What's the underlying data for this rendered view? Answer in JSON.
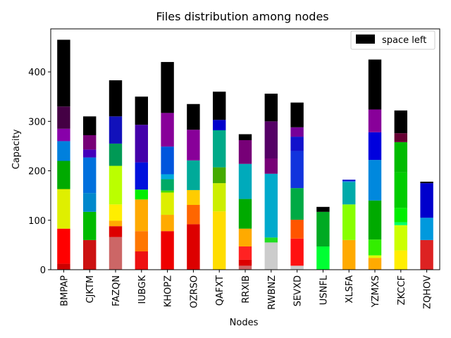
{
  "chart_data": {
    "type": "bar",
    "stacked": true,
    "title": "Files distribution among nodes",
    "xlabel": "Nodes",
    "ylabel": "Capacity",
    "ylim": [
      0,
      487
    ],
    "yticks": [
      0,
      100,
      200,
      300,
      400
    ],
    "grid": false,
    "legend": {
      "placement": "top-right",
      "entries": [
        {
          "label": "space left",
          "color": "#000000"
        }
      ]
    },
    "categories": [
      "BMPAP",
      "CJKTM",
      "FAZQN",
      "IUBGK",
      "KHOPZ",
      "OZRSO",
      "QAFXT",
      "RRXIB",
      "RWBNZ",
      "SEVXD",
      "USNFL",
      "XLSFA",
      "YZMXS",
      "ZKCCF",
      "ZQHOV"
    ],
    "bars": [
      {
        "segments": [
          {
            "value": 12,
            "color": "#cc0000"
          },
          {
            "value": 71,
            "color": "#ff0000"
          },
          {
            "value": 80,
            "color": "#dfef00"
          },
          {
            "value": 57,
            "color": "#00aa00"
          },
          {
            "value": 40,
            "color": "#0080dd"
          },
          {
            "value": 25,
            "color": "#8800aa"
          },
          {
            "value": 45,
            "color": "#440044"
          },
          {
            "value": 135,
            "color": "#000000"
          }
        ]
      },
      {
        "segments": [
          {
            "value": 60,
            "color": "#cc1111"
          },
          {
            "value": 57,
            "color": "#00bb00"
          },
          {
            "value": 38,
            "color": "#0088cc"
          },
          {
            "value": 72,
            "color": "#0070dd"
          },
          {
            "value": 16,
            "color": "#4400bb"
          },
          {
            "value": 29,
            "color": "#770077"
          },
          {
            "value": 38,
            "color": "#000000"
          }
        ]
      },
      {
        "segments": [
          {
            "value": 66,
            "color": "#cc6666"
          },
          {
            "value": 22,
            "color": "#dd0000"
          },
          {
            "value": 11,
            "color": "#ffaa00"
          },
          {
            "value": 33,
            "color": "#ffee00"
          },
          {
            "value": 78,
            "color": "#bbff00"
          },
          {
            "value": 45,
            "color": "#009955"
          },
          {
            "value": 55,
            "color": "#1111bb"
          },
          {
            "value": 73,
            "color": "#000000"
          }
        ]
      },
      {
        "segments": [
          {
            "value": 37,
            "color": "#ee1111"
          },
          {
            "value": 41,
            "color": "#ff7700"
          },
          {
            "value": 64,
            "color": "#ffaa00"
          },
          {
            "value": 20,
            "color": "#00ee00"
          },
          {
            "value": 55,
            "color": "#0011dd"
          },
          {
            "value": 76,
            "color": "#4400aa"
          },
          {
            "value": 57,
            "color": "#000000"
          }
        ]
      },
      {
        "segments": [
          {
            "value": 78,
            "color": "#ee0000"
          },
          {
            "value": 33,
            "color": "#ffaa00"
          },
          {
            "value": 45,
            "color": "#ddee00"
          },
          {
            "value": 4,
            "color": "#44dd00"
          },
          {
            "value": 23,
            "color": "#00aa66"
          },
          {
            "value": 10,
            "color": "#00aadd"
          },
          {
            "value": 56,
            "color": "#0055dd"
          },
          {
            "value": 68,
            "color": "#880099"
          },
          {
            "value": 103,
            "color": "#000000"
          }
        ]
      },
      {
        "segments": [
          {
            "value": 92,
            "color": "#dd0000"
          },
          {
            "value": 39,
            "color": "#ff6600"
          },
          {
            "value": 30,
            "color": "#ffcc00"
          },
          {
            "value": 60,
            "color": "#00aa99"
          },
          {
            "value": 62,
            "color": "#880099"
          },
          {
            "value": 52,
            "color": "#000000"
          }
        ]
      },
      {
        "segments": [
          {
            "value": 118,
            "color": "#ffdd00"
          },
          {
            "value": 57,
            "color": "#ccee00"
          },
          {
            "value": 32,
            "color": "#44aa00"
          },
          {
            "value": 75,
            "color": "#00aa88"
          },
          {
            "value": 21,
            "color": "#0000cc"
          },
          {
            "value": 57,
            "color": "#000000"
          }
        ]
      },
      {
        "segments": [
          {
            "value": 8,
            "color": "#cc6666"
          },
          {
            "value": 12,
            "color": "#dd0000"
          },
          {
            "value": 27,
            "color": "#ff2222"
          },
          {
            "value": 36,
            "color": "#ffaa00"
          },
          {
            "value": 60,
            "color": "#00aa00"
          },
          {
            "value": 71,
            "color": "#00aabb"
          },
          {
            "value": 48,
            "color": "#770077"
          },
          {
            "value": 12,
            "color": "#000000"
          }
        ]
      },
      {
        "segments": [
          {
            "value": 55,
            "color": "#cccccc"
          },
          {
            "value": 10,
            "color": "#22dd22"
          },
          {
            "value": 129,
            "color": "#00aacc"
          },
          {
            "value": 31,
            "color": "#770077"
          },
          {
            "value": 75,
            "color": "#550066"
          },
          {
            "value": 56,
            "color": "#000000"
          }
        ]
      },
      {
        "segments": [
          {
            "value": 8,
            "color": "#cccccc"
          },
          {
            "value": 55,
            "color": "#ff1111"
          },
          {
            "value": 38,
            "color": "#ff5500"
          },
          {
            "value": 64,
            "color": "#00aa44"
          },
          {
            "value": 75,
            "color": "#1133dd"
          },
          {
            "value": 29,
            "color": "#1111cc"
          },
          {
            "value": 19,
            "color": "#770099"
          },
          {
            "value": 50,
            "color": "#000000"
          }
        ]
      },
      {
        "segments": [
          {
            "value": 47,
            "color": "#00ff33"
          },
          {
            "value": 70,
            "color": "#00aa22"
          },
          {
            "value": 10,
            "color": "#000000"
          }
        ]
      },
      {
        "segments": [
          {
            "value": 60,
            "color": "#ffaa00"
          },
          {
            "value": 72,
            "color": "#88ff00"
          },
          {
            "value": 45,
            "color": "#00aaaa"
          },
          {
            "value": 2,
            "color": "#0088dd"
          },
          {
            "value": 3,
            "color": "#1111cc"
          }
        ]
      },
      {
        "segments": [
          {
            "value": 24,
            "color": "#ffaa00"
          },
          {
            "value": 5,
            "color": "#ddff00"
          },
          {
            "value": 32,
            "color": "#33ee00"
          },
          {
            "value": 79,
            "color": "#00aa00"
          },
          {
            "value": 82,
            "color": "#0088dd"
          },
          {
            "value": 56,
            "color": "#0000dd"
          },
          {
            "value": 46,
            "color": "#880099"
          },
          {
            "value": 101,
            "color": "#000000"
          }
        ]
      },
      {
        "segments": [
          {
            "value": 39,
            "color": "#ffee00"
          },
          {
            "value": 51,
            "color": "#ccff00"
          },
          {
            "value": 6,
            "color": "#00ff66"
          },
          {
            "value": 29,
            "color": "#00ee00"
          },
          {
            "value": 72,
            "color": "#00cc00"
          },
          {
            "value": 61,
            "color": "#00bb00"
          },
          {
            "value": 18,
            "color": "#660033"
          },
          {
            "value": 46,
            "color": "#000000"
          }
        ]
      },
      {
        "segments": [
          {
            "value": 60,
            "color": "#dd2222"
          },
          {
            "value": 45,
            "color": "#0099dd"
          },
          {
            "value": 70,
            "color": "#0000cc"
          },
          {
            "value": 3,
            "color": "#000000"
          }
        ]
      }
    ]
  }
}
